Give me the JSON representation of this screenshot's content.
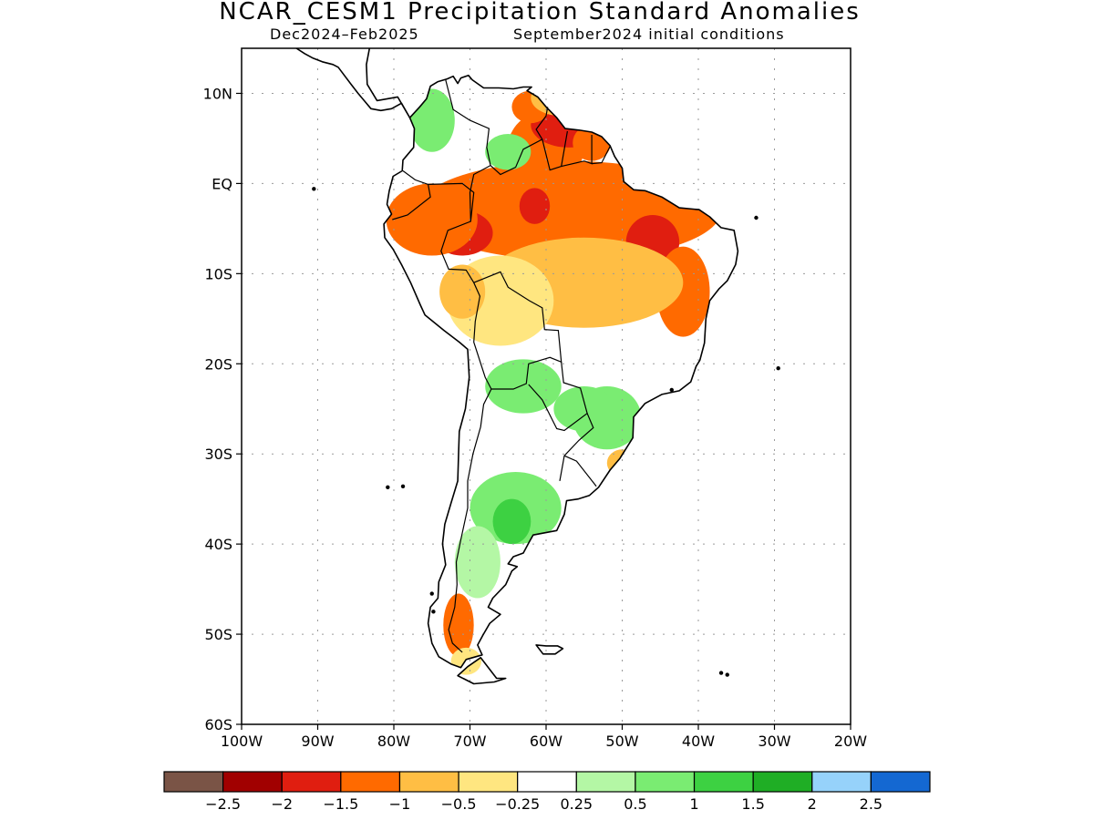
{
  "title": "NCAR_CESM1 Precipitation Standard Anomalies",
  "subtitle_left": "Dec2024–Feb2025",
  "subtitle_right": "September2024 initial conditions",
  "map": {
    "lon_range": [
      -100,
      -20
    ],
    "lat_range": [
      -60,
      15
    ],
    "lat_ticks": [
      {
        "value": 10,
        "label": "10N"
      },
      {
        "value": 0,
        "label": "EQ"
      },
      {
        "value": -10,
        "label": "10S"
      },
      {
        "value": -20,
        "label": "20S"
      },
      {
        "value": -30,
        "label": "30S"
      },
      {
        "value": -40,
        "label": "40S"
      },
      {
        "value": -50,
        "label": "50S"
      },
      {
        "value": -60,
        "label": "60S"
      }
    ],
    "lon_ticks": [
      {
        "value": -100,
        "label": "100W"
      },
      {
        "value": -90,
        "label": "90W"
      },
      {
        "value": -80,
        "label": "80W"
      },
      {
        "value": -70,
        "label": "70W"
      },
      {
        "value": -60,
        "label": "60W"
      },
      {
        "value": -50,
        "label": "50W"
      },
      {
        "value": -40,
        "label": "40W"
      },
      {
        "value": -30,
        "label": "30W"
      },
      {
        "value": -20,
        "label": "20W"
      }
    ],
    "grid": true
  },
  "colorbar": {
    "colors": [
      "#7a5446",
      "#a10000",
      "#e01e10",
      "#ff6a00",
      "#ffbe44",
      "#ffe680",
      "#ffffff",
      "#b4f7a5",
      "#7aec72",
      "#3dd142",
      "#1fae25",
      "#96d2fa",
      "#1468d2"
    ],
    "labels": [
      "−2.5",
      "−2",
      "−1.5",
      "−1",
      "−0.5",
      "−0.25",
      "0.25",
      "0.5",
      "1",
      "1.5",
      "2",
      "2.5"
    ]
  },
  "chart_data": {
    "type": "heatmap",
    "title": "NCAR_CESM1 Precipitation Standard Anomalies",
    "subtitle": "Dec2024–Feb2025  September2024 initial conditions",
    "xlim": [
      -100,
      -20
    ],
    "ylim": [
      -60,
      15
    ],
    "levels": [
      -2.5,
      -2,
      -1.5,
      -1,
      -0.5,
      -0.25,
      0.25,
      0.5,
      1,
      1.5,
      2,
      2.5
    ],
    "blobs": [
      {
        "lon": -60,
        "lat": 4,
        "value": -1.2,
        "rx": 5,
        "ry": 4
      },
      {
        "lon": -57,
        "lat": 6.5,
        "value": -1.6,
        "rx": 5,
        "ry": 2.5
      },
      {
        "lon": -62,
        "lat": 8.5,
        "value": -1.3,
        "rx": 2.5,
        "ry": 1.8
      },
      {
        "lon": -54,
        "lat": 4.5,
        "value": -1.4,
        "rx": 2.5,
        "ry": 2
      },
      {
        "lon": -58,
        "lat": 9.5,
        "value": -0.6,
        "rx": 4,
        "ry": 2
      },
      {
        "lon": -57,
        "lat": -3,
        "value": -1.3,
        "rx": 20,
        "ry": 5.5
      },
      {
        "lon": -61.5,
        "lat": -2.5,
        "value": -1.6,
        "rx": 2,
        "ry": 2
      },
      {
        "lon": -71,
        "lat": -5.5,
        "value": -1.7,
        "rx": 4,
        "ry": 2.5
      },
      {
        "lon": -46,
        "lat": -6.5,
        "value": -1.8,
        "rx": 3.5,
        "ry": 3
      },
      {
        "lon": -75,
        "lat": -4,
        "value": -1.1,
        "rx": 6,
        "ry": 4
      },
      {
        "lon": -42,
        "lat": -12,
        "value": -1.1,
        "rx": 3.5,
        "ry": 5
      },
      {
        "lon": -55,
        "lat": -11,
        "value": -0.7,
        "rx": 13,
        "ry": 5
      },
      {
        "lon": -66,
        "lat": -13,
        "value": -0.5,
        "rx": 7,
        "ry": 5
      },
      {
        "lon": -71,
        "lat": -12,
        "value": -0.9,
        "rx": 3,
        "ry": 3
      },
      {
        "lon": -75,
        "lat": 7,
        "value": 0.6,
        "rx": 3,
        "ry": 3.5
      },
      {
        "lon": -65,
        "lat": 3.5,
        "value": 0.6,
        "rx": 3,
        "ry": 2
      },
      {
        "lon": -52,
        "lat": -26,
        "value": 0.9,
        "rx": 4.5,
        "ry": 3.5
      },
      {
        "lon": -55,
        "lat": -25,
        "value": 0.55,
        "rx": 4,
        "ry": 2.5
      },
      {
        "lon": -63,
        "lat": -22.5,
        "value": 0.5,
        "rx": 5,
        "ry": 3
      },
      {
        "lon": -64,
        "lat": -36,
        "value": 0.6,
        "rx": 6,
        "ry": 4
      },
      {
        "lon": -64.5,
        "lat": -37.5,
        "value": 1.1,
        "rx": 2.5,
        "ry": 2.5
      },
      {
        "lon": -69,
        "lat": -42,
        "value": 0.45,
        "rx": 3,
        "ry": 4
      },
      {
        "lon": -71.5,
        "lat": -49,
        "value": -1.3,
        "rx": 2,
        "ry": 3.5
      },
      {
        "lon": -50,
        "lat": -31,
        "value": -0.6,
        "rx": 2,
        "ry": 1.5
      },
      {
        "lon": -70.5,
        "lat": -53,
        "value": -0.4,
        "rx": 2,
        "ry": 1.5
      }
    ]
  }
}
